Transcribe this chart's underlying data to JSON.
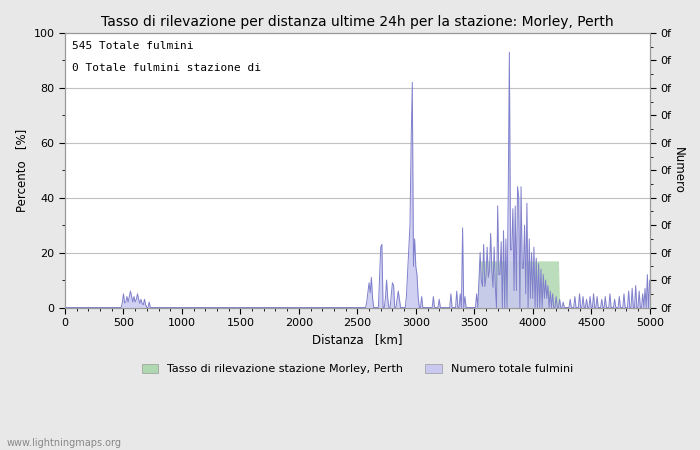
{
  "title": "Tasso di rilevazione per distanza ultime 24h per la stazione: Morley, Perth",
  "xlabel": "Distanza   [km]",
  "ylabel_left": "Percento   [%]",
  "ylabel_right": "Numero",
  "annotation_line1": "545 Totale fulmini",
  "annotation_line2": "0 Totale fulmini stazione di",
  "legend_label1": "Tasso di rilevazione stazione Morley, Perth",
  "legend_label2": "Numero totale fulmini",
  "watermark": "www.lightningmaps.org",
  "xlim": [
    0,
    5000
  ],
  "ylim": [
    0,
    100
  ],
  "bg_color": "#e8e8e8",
  "plot_bg_color": "#ffffff",
  "grid_color": "#c0c0c0",
  "line_color": "#8080cc",
  "fill_blue_color": "#c8c8f0",
  "fill_green_color": "#b0d8b0",
  "title_fontsize": 10,
  "label_fontsize": 8.5,
  "tick_fontsize": 8,
  "annotation_fontsize": 8
}
